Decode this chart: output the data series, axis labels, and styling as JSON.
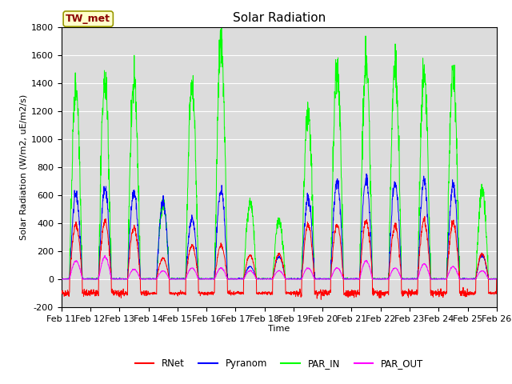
{
  "title": "Solar Radiation",
  "xlabel": "Time",
  "ylabel": "Solar Radiation (W/m2, uE/m2/s)",
  "ylim": [
    -200,
    1800
  ],
  "yticks": [
    -200,
    0,
    200,
    400,
    600,
    800,
    1000,
    1200,
    1400,
    1600,
    1800
  ],
  "date_labels": [
    "Feb 11",
    "Feb 12",
    "Feb 13",
    "Feb 14",
    "Feb 15",
    "Feb 16",
    "Feb 17",
    "Feb 18",
    "Feb 19",
    "Feb 20",
    "Feb 21",
    "Feb 22",
    "Feb 23",
    "Feb 24",
    "Feb 25",
    "Feb 26"
  ],
  "station_label": "TW_met",
  "colors": {
    "RNet": "#FF0000",
    "Pyranom": "#0000FF",
    "PAR_IN": "#00FF00",
    "PAR_OUT": "#FF00FF"
  },
  "bg_color": "#DCDCDC",
  "num_days": 15,
  "points_per_day": 144,
  "rnet_peaks": [
    390,
    410,
    370,
    150,
    240,
    240,
    170,
    180,
    390,
    390,
    420,
    380,
    420,
    400,
    180
  ],
  "pyranom_peaks": [
    600,
    640,
    620,
    550,
    430,
    640,
    90,
    160,
    580,
    700,
    720,
    700,
    700,
    670,
    170
  ],
  "par_in_peaks": [
    1370,
    1410,
    1410,
    540,
    1380,
    1670,
    550,
    420,
    1200,
    1520,
    1550,
    1520,
    1450,
    1450,
    620
  ],
  "par_out_peaks": [
    130,
    160,
    70,
    60,
    80,
    80,
    60,
    60,
    80,
    80,
    130,
    80,
    110,
    90,
    60
  ],
  "rnet_night": -100,
  "title_fontsize": 11,
  "label_fontsize": 8,
  "tick_fontsize": 8
}
